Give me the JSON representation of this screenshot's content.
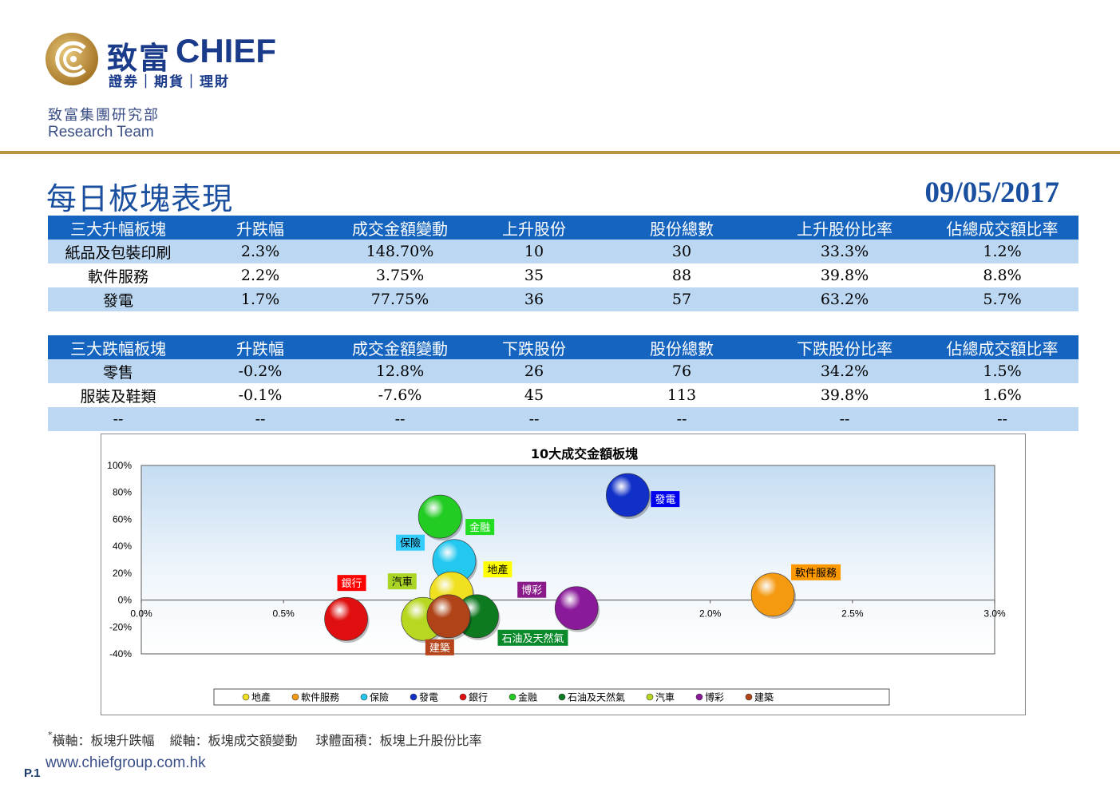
{
  "header": {
    "logo_cn": "致富",
    "logo_en": "CHIEF",
    "logo_sub": "證券｜期貨｜理財",
    "dept_cn": "致富集團研究部",
    "dept_en": "Research Team"
  },
  "title": "每日板塊表現",
  "date": "09/05/2017",
  "table_up": {
    "headers": [
      "三大升幅板塊",
      "升跌幅",
      "成交金額變動",
      "上升股份",
      "股份總數",
      "上升股份比率",
      "佔總成交額比率"
    ],
    "rows": [
      [
        "紙品及包裝印刷",
        "2.3%",
        "148.70%",
        "10",
        "30",
        "33.3%",
        "1.2%"
      ],
      [
        "軟件服務",
        "2.2%",
        "3.75%",
        "35",
        "88",
        "39.8%",
        "8.8%"
      ],
      [
        "發電",
        "1.7%",
        "77.75%",
        "36",
        "57",
        "63.2%",
        "5.7%"
      ]
    ]
  },
  "table_down": {
    "headers": [
      "三大跌幅板塊",
      "升跌幅",
      "成交金額變動",
      "下跌股份",
      "股份總數",
      "下跌股份比率",
      "佔總成交額比率"
    ],
    "rows": [
      [
        "零售",
        "-0.2%",
        "12.8%",
        "26",
        "76",
        "34.2%",
        "1.5%"
      ],
      [
        "服裝及鞋類",
        "-0.1%",
        "-7.6%",
        "45",
        "113",
        "39.8%",
        "1.6%"
      ],
      [
        "--",
        "--",
        "--",
        "--",
        "--",
        "--",
        "--"
      ]
    ]
  },
  "chart_data": {
    "type": "scatter",
    "title": "10大成交金額板塊",
    "xlim": [
      0,
      3.0
    ],
    "ylim": [
      -40,
      100
    ],
    "x_ticks": [
      "0.0%",
      "0.5%",
      "1.0%",
      "1.5%",
      "2.0%",
      "2.5%",
      "3.0%"
    ],
    "y_ticks": [
      "100%",
      "80%",
      "60%",
      "40%",
      "20%",
      "0%",
      "-20%",
      "-40%"
    ],
    "legend_position": "bottom",
    "series": [
      {
        "name": "地產",
        "x": 1.09,
        "y": 5,
        "color": "#f0e020",
        "label_bg": "#ffff00",
        "label_color": "#000000"
      },
      {
        "name": "軟件服務",
        "x": 2.22,
        "y": 4,
        "color": "#f59a10",
        "label_bg": "#ff9900",
        "label_color": "#000000"
      },
      {
        "name": "保險",
        "x": 1.1,
        "y": 29,
        "color": "#22c8f0",
        "label_bg": "#33ccff",
        "label_color": "#000000"
      },
      {
        "name": "發電",
        "x": 1.71,
        "y": 78,
        "color": "#1030c8",
        "label_bg": "#0000ee",
        "label_color": "#ffffff"
      },
      {
        "name": "銀行",
        "x": 0.72,
        "y": -14,
        "color": "#e01010",
        "label_bg": "#ff0000",
        "label_color": "#ffffff"
      },
      {
        "name": "金融",
        "x": 1.05,
        "y": 62,
        "color": "#22cc22",
        "label_bg": "#22dd22",
        "label_color": "#ffffff"
      },
      {
        "name": "石油及天然氣",
        "x": 1.18,
        "y": -12,
        "color": "#0e7a20",
        "label_bg": "#0a8a2a",
        "label_color": "#ffffff"
      },
      {
        "name": "汽車",
        "x": 0.99,
        "y": -14,
        "color": "#b6d820",
        "label_bg": "#aad426",
        "label_color": "#000000"
      },
      {
        "name": "博彩",
        "x": 1.53,
        "y": -6,
        "color": "#8a1a9a",
        "label_bg": "#8a1a8a",
        "label_color": "#ffffff"
      },
      {
        "name": "建築",
        "x": 1.08,
        "y": -12,
        "color": "#b04418",
        "label_bg": "#b5441a",
        "label_color": "#ffffff"
      }
    ]
  },
  "footnote": {
    "star": "*",
    "text": "橫軸：板塊升跌幅\t縱軸：板塊成交額變動\t球體面積：板塊上升股份比率"
  },
  "footer": {
    "page": "P.1",
    "website": "www.chiefgroup.com.hk"
  },
  "colors": {
    "brand_blue": "#1a3a8a",
    "gold": "#b8953e",
    "table_header": "#1565c0",
    "table_alt_row": "#bcd7f2",
    "title_blue": "#1a4fa0"
  }
}
